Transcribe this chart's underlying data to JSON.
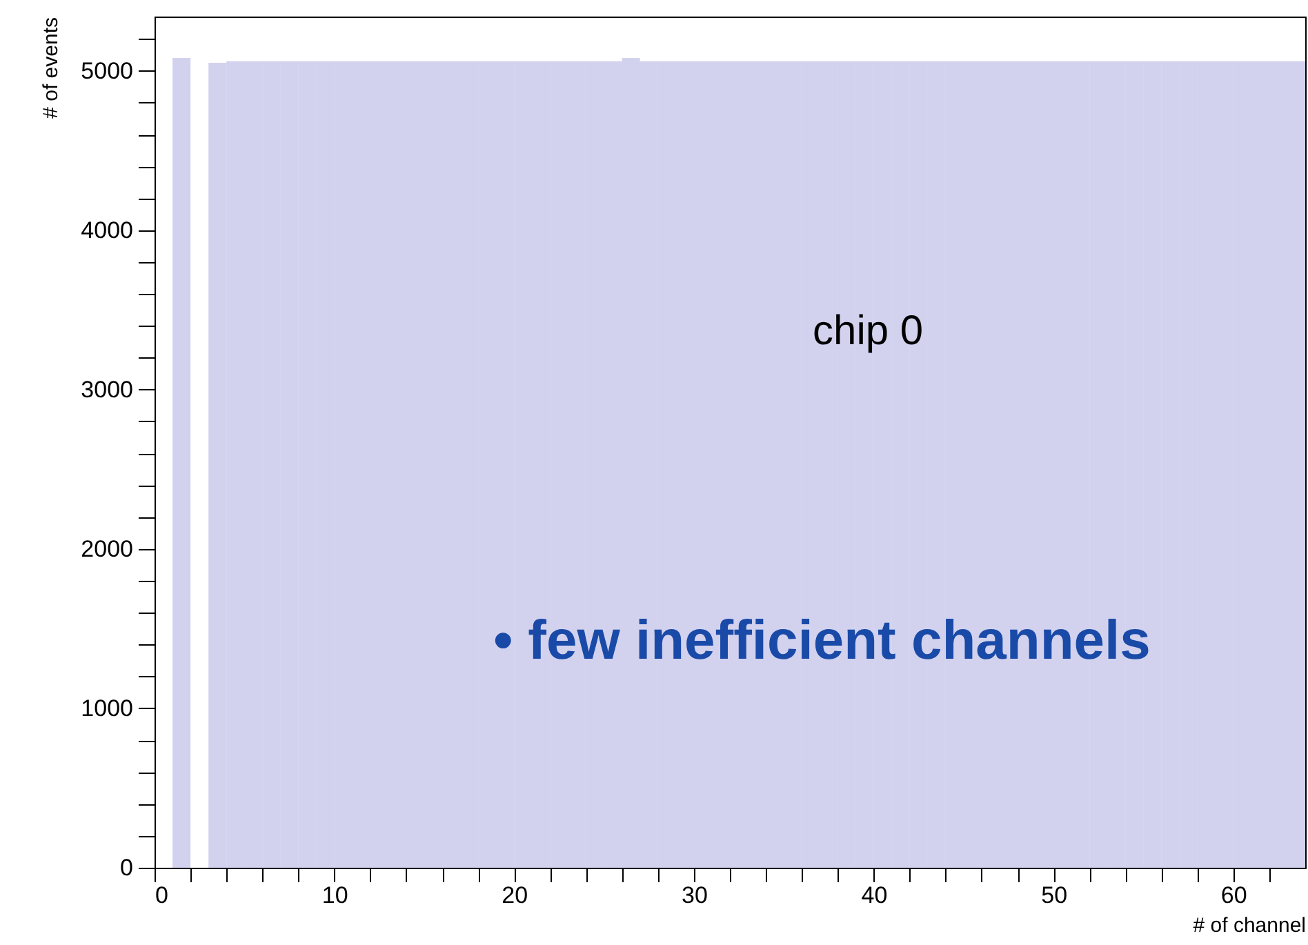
{
  "chart_data": {
    "type": "histogram",
    "xlabel": "# of channel",
    "ylabel": "# of events",
    "bins": [
      0,
      1,
      2,
      3,
      4,
      5,
      6,
      7,
      8,
      9,
      10,
      11,
      12,
      13,
      14,
      15,
      16,
      17,
      18,
      19,
      20,
      21,
      22,
      23,
      24,
      25,
      26,
      27,
      28,
      29,
      30,
      31,
      32,
      33,
      34,
      35,
      36,
      37,
      38,
      39,
      40,
      41,
      42,
      43,
      44,
      45,
      46,
      47,
      48,
      49,
      50,
      51,
      52,
      53,
      54,
      55,
      56,
      57,
      58,
      59,
      60,
      61,
      62,
      63,
      64
    ],
    "values": [
      0,
      5080,
      0,
      5050,
      5060,
      5060,
      5060,
      5060,
      5060,
      5060,
      5060,
      5060,
      5060,
      5060,
      5060,
      5060,
      5060,
      5060,
      5060,
      5060,
      5060,
      5060,
      5060,
      5060,
      5060,
      5060,
      5080,
      5060,
      5060,
      5060,
      5060,
      5060,
      5060,
      5060,
      5060,
      5060,
      5060,
      5060,
      5060,
      5060,
      5060,
      5060,
      5060,
      5060,
      5060,
      5060,
      5060,
      5060,
      5060,
      5060,
      5060,
      5060,
      5060,
      5060,
      5060,
      5060,
      5060,
      5060,
      5060,
      5060,
      5060,
      5060,
      5060,
      5060
    ],
    "color": "#7f7fd0",
    "xlim": [
      0,
      64
    ],
    "ylim": [
      0,
      5340
    ],
    "xticks": [
      0,
      {
        "value": 2,
        "label": null
      },
      {
        "value": 4,
        "label": null
      },
      {
        "value": 6,
        "label": null
      },
      {
        "value": 8,
        "label": null
      },
      10,
      {
        "value": 12,
        "label": null
      },
      {
        "value": 14,
        "label": null
      },
      {
        "value": 16,
        "label": null
      },
      {
        "value": 18,
        "label": null
      },
      20,
      {
        "value": 22,
        "label": null
      },
      {
        "value": 24,
        "label": null
      },
      {
        "value": 26,
        "label": null
      },
      {
        "value": 28,
        "label": null
      },
      30,
      {
        "value": 32,
        "label": null
      },
      {
        "value": 34,
        "label": null
      },
      {
        "value": 36,
        "label": null
      },
      {
        "value": 38,
        "label": null
      },
      40,
      {
        "value": 42,
        "label": null
      },
      {
        "value": 44,
        "label": null
      },
      {
        "value": 46,
        "label": null
      },
      {
        "value": 48,
        "label": null
      },
      50,
      {
        "value": 52,
        "label": null
      },
      {
        "value": 54,
        "label": null
      },
      {
        "value": 56,
        "label": null
      },
      {
        "value": 58,
        "label": null
      },
      60,
      {
        "value": 62,
        "label": null
      }
    ],
    "yticks": [
      0,
      {
        "value": 200,
        "label": null
      },
      {
        "value": 400,
        "label": null
      },
      {
        "value": 600,
        "label": null
      },
      {
        "value": 800,
        "label": null
      },
      1000,
      {
        "value": 1200,
        "label": null
      },
      {
        "value": 1400,
        "label": null
      },
      {
        "value": 1600,
        "label": null
      },
      {
        "value": 1800,
        "label": null
      },
      2000,
      {
        "value": 2200,
        "label": null
      },
      {
        "value": 2400,
        "label": null
      },
      {
        "value": 2600,
        "label": null
      },
      {
        "value": 2800,
        "label": null
      },
      3000,
      {
        "value": 3200,
        "label": null
      },
      {
        "value": 3400,
        "label": null
      },
      {
        "value": 3600,
        "label": null
      },
      {
        "value": 3800,
        "label": null
      },
      4000,
      {
        "value": 4200,
        "label": null
      },
      {
        "value": 4400,
        "label": null
      },
      {
        "value": 4600,
        "label": null
      },
      {
        "value": 4800,
        "label": null
      },
      5000,
      {
        "value": 5200,
        "label": null
      }
    ],
    "annotations": [
      "chip 0",
      "• few inefficient channels"
    ],
    "grid": false
  }
}
